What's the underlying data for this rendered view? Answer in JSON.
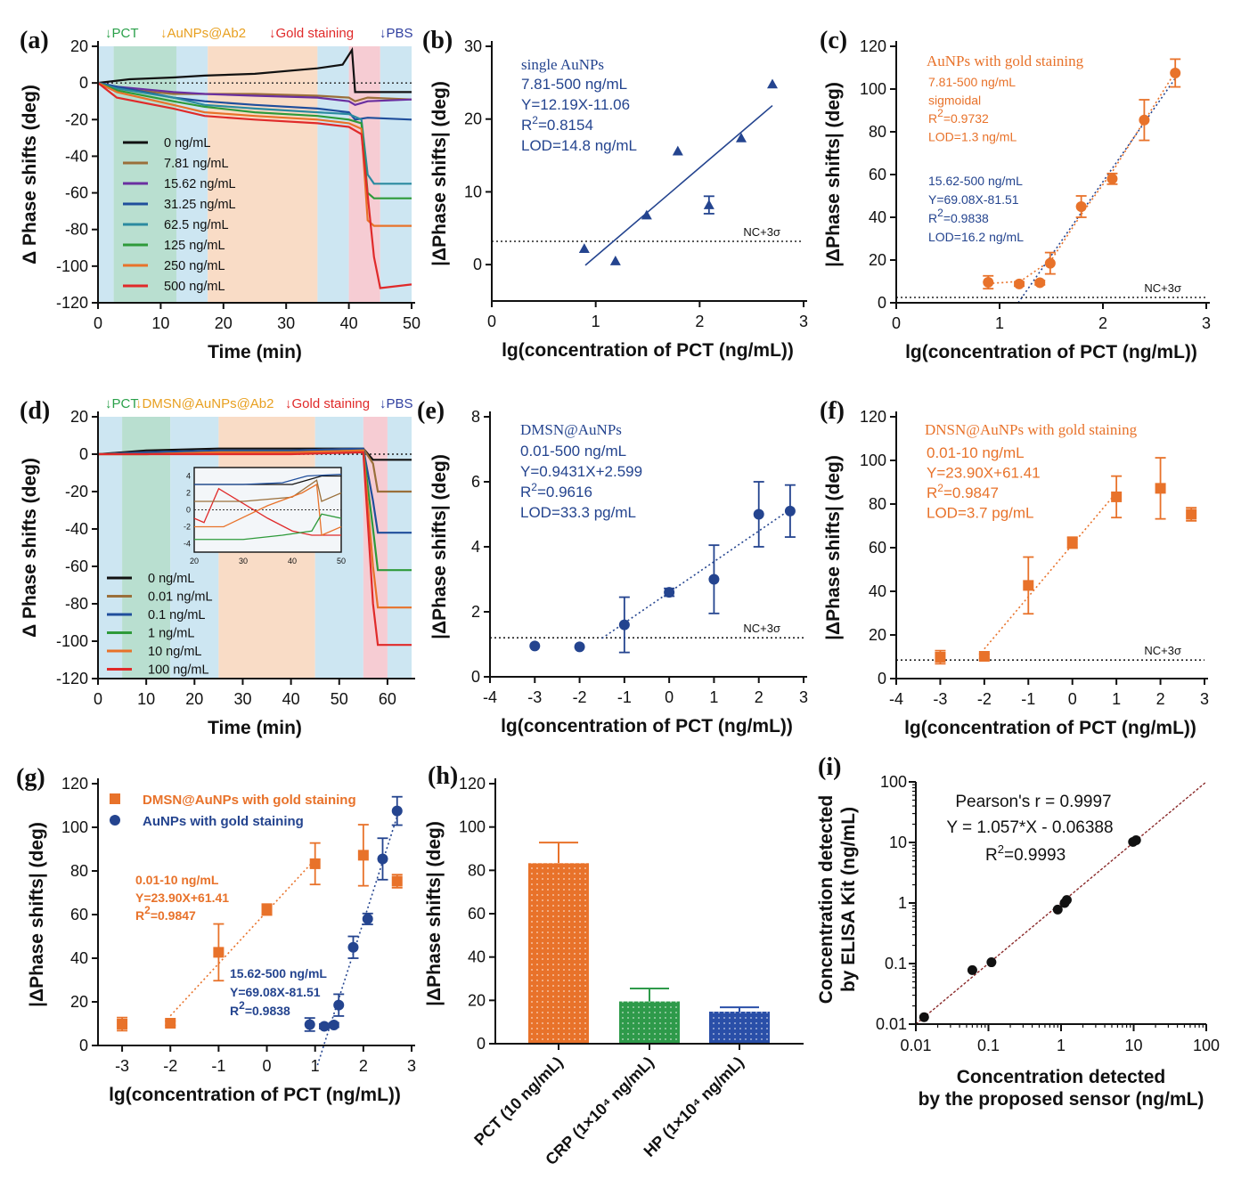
{
  "colors": {
    "blue": "#24448f",
    "orange": "#e8722a",
    "green": "#2e8b3f",
    "black": "#111111",
    "brown": "#9a6f3a",
    "purple": "#6a2fa0",
    "blue2": "#1f4e9c",
    "teal": "#2b8aa0",
    "red": "#e02a2a",
    "pct": "#2aa04a",
    "gold": "#e8a020",
    "pbs": "#3040a0"
  },
  "chart_data": [
    {
      "panel": "(a)",
      "type": "line",
      "xlabel": "Time (min)",
      "ylabel": "Δ Phase shifts (deg)",
      "xlim": [
        0,
        50
      ],
      "ylim": [
        -120,
        20
      ],
      "xticks": [
        "0",
        "10",
        "20",
        "30",
        "40",
        "50"
      ],
      "yticks": [
        "20",
        "0",
        "-20",
        "-40",
        "-60",
        "-80",
        "-100",
        "-120"
      ],
      "stage_labels": [
        "↓PCT",
        "↓AuNPs@Ab2",
        "↓Gold staining",
        "↓PBS"
      ],
      "stages": [
        {
          "from": 0,
          "to": 2.5,
          "color": "#cde6f2"
        },
        {
          "from": 2.5,
          "to": 12.5,
          "color": "#b9dfd0"
        },
        {
          "from": 12.5,
          "to": 17.5,
          "color": "#cde6f2"
        },
        {
          "from": 17.5,
          "to": 35,
          "color": "#f9dcc6"
        },
        {
          "from": 35,
          "to": 40,
          "color": "#cde6f2"
        },
        {
          "from": 40,
          "to": 45,
          "color": "#f6ccd3"
        },
        {
          "from": 45,
          "to": 50,
          "color": "#cde6f2"
        }
      ],
      "series": [
        {
          "name": "0 ng/mL",
          "color": "#111111",
          "x": [
            0,
            5,
            12,
            17,
            25,
            35,
            39,
            40.5,
            41,
            43,
            50
          ],
          "y": [
            0,
            2,
            3,
            4,
            5,
            8,
            10,
            18,
            -5,
            -5,
            -5
          ]
        },
        {
          "name": "7.81 ng/mL",
          "color": "#9a6f3a",
          "x": [
            0,
            3,
            12,
            17,
            25,
            35,
            40,
            41,
            43,
            50
          ],
          "y": [
            0,
            -3,
            -6,
            -6,
            -6,
            -7,
            -8,
            -10,
            -8,
            -9
          ]
        },
        {
          "name": "15.62 ng/mL",
          "color": "#6a2fa0",
          "x": [
            0,
            3,
            12,
            17,
            25,
            35,
            40,
            41,
            43,
            50
          ],
          "y": [
            0,
            -2,
            -5,
            -6,
            -7,
            -8,
            -10,
            -12,
            -10,
            -9
          ]
        },
        {
          "name": "31.25 ng/mL",
          "color": "#1f4e9c",
          "x": [
            0,
            3,
            12,
            17,
            25,
            35,
            40,
            41,
            43,
            50
          ],
          "y": [
            0,
            -2,
            -8,
            -10,
            -12,
            -14,
            -16,
            -20,
            -19,
            -20
          ]
        },
        {
          "name": "62.5 ng/mL",
          "color": "#2b8aa0",
          "x": [
            0,
            3,
            12,
            17,
            25,
            35,
            40,
            42,
            43,
            44,
            50
          ],
          "y": [
            0,
            -3,
            -8,
            -12,
            -14,
            -16,
            -17,
            -20,
            -50,
            -55,
            -55
          ]
        },
        {
          "name": "125 ng/mL",
          "color": "#2e9a3a",
          "x": [
            0,
            3,
            12,
            17,
            25,
            35,
            40,
            42,
            43,
            44,
            50
          ],
          "y": [
            0,
            -4,
            -10,
            -13,
            -16,
            -18,
            -20,
            -22,
            -60,
            -63,
            -63
          ]
        },
        {
          "name": "250 ng/mL",
          "color": "#e8722a",
          "x": [
            0,
            3,
            12,
            17,
            25,
            35,
            40,
            42,
            43,
            44,
            50
          ],
          "y": [
            0,
            -5,
            -12,
            -16,
            -18,
            -20,
            -22,
            -25,
            -75,
            -78,
            -78
          ]
        },
        {
          "name": "500 ng/mL",
          "color": "#e02a2a",
          "x": [
            0,
            3,
            12,
            17,
            25,
            35,
            40,
            42,
            44,
            45,
            50
          ],
          "y": [
            0,
            -8,
            -14,
            -18,
            -20,
            -22,
            -24,
            -28,
            -95,
            -112,
            -110
          ]
        }
      ]
    },
    {
      "panel": "(b)",
      "type": "scatter",
      "xlabel": "lg(concentration of PCT (ng/mL))",
      "ylabel": "|ΔPhase shifts| (deg)",
      "xlim": [
        0,
        3
      ],
      "ylim": [
        -5,
        30
      ],
      "xticks": [
        "0",
        "1",
        "2",
        "3"
      ],
      "yticks": [
        "0",
        "10",
        "20",
        "30"
      ],
      "title": "single AuNPs",
      "annotations": [
        "7.81-500 ng/mL",
        "Y=12.19X-11.06",
        "R2=0.8154",
        "LOD=14.8 ng/mL"
      ],
      "nc_label": "NC+3σ",
      "nc_value": 3.2,
      "x": [
        0.89,
        1.19,
        1.49,
        1.79,
        2.09,
        2.4,
        2.7
      ],
      "y": [
        2.2,
        0.5,
        6.8,
        15.6,
        8.2,
        17.4,
        24.8
      ],
      "err": [
        0,
        0,
        0,
        0,
        1.2,
        0,
        0
      ],
      "fit": {
        "slope": 12.19,
        "intercept": -11.06,
        "x": [
          0.9,
          2.7
        ]
      }
    },
    {
      "panel": "(c)",
      "type": "scatter",
      "xlabel": "lg(concentration of PCT (ng/mL))",
      "ylabel": "|ΔPhase shifts| (deg)",
      "xlim": [
        0,
        3
      ],
      "ylim": [
        0,
        120
      ],
      "xticks": [
        "0",
        "1",
        "2",
        "3"
      ],
      "yticks": [
        "0",
        "20",
        "40",
        "60",
        "80",
        "100",
        "120"
      ],
      "title": "AuNPs with gold staining",
      "annotations_orange": [
        "7.81-500 ng/mL",
        "sigmoidal",
        "R2=0.9732",
        "LOD=1.3 ng/mL"
      ],
      "annotations_blue": [
        "15.62-500 ng/mL",
        "Y=69.08X-81.51",
        "R2=0.9838",
        "LOD=16.2 ng/mL"
      ],
      "nc_label": "NC+3σ",
      "nc_value": 2.5,
      "x": [
        0.89,
        1.19,
        1.39,
        1.49,
        1.79,
        2.09,
        2.4,
        2.7
      ],
      "y": [
        9.6,
        8.8,
        9.4,
        18.5,
        45,
        58,
        85.5,
        107.5
      ],
      "err": [
        3,
        1,
        1,
        5,
        5,
        2.5,
        9.5,
        6.5
      ],
      "sigmoid": {
        "x": [
          0.89,
          1.2,
          1.5,
          1.8,
          2.1,
          2.4,
          2.7
        ],
        "y": [
          9,
          10,
          20,
          42,
          62,
          85,
          108
        ]
      },
      "fit": {
        "slope": 69.08,
        "intercept": -81.51,
        "x": [
          1.18,
          2.7
        ]
      }
    },
    {
      "panel": "(d)",
      "type": "line",
      "xlabel": "Time (min)",
      "ylabel": "Δ Phase shifts (deg)",
      "xlim": [
        0,
        65
      ],
      "ylim": [
        -120,
        20
      ],
      "xticks": [
        "0",
        "10",
        "20",
        "30",
        "40",
        "50",
        "60"
      ],
      "yticks": [
        "20",
        "0",
        "-20",
        "-40",
        "-60",
        "-80",
        "-100",
        "-120"
      ],
      "stage_labels": [
        "↓PCT",
        "↓DMSN@AuNPs@Ab2",
        "↓Gold staining",
        "↓PBS"
      ],
      "stages": [
        {
          "from": 0,
          "to": 5,
          "color": "#cde6f2"
        },
        {
          "from": 5,
          "to": 15,
          "color": "#b9dfd0"
        },
        {
          "from": 15,
          "to": 25,
          "color": "#cde6f2"
        },
        {
          "from": 25,
          "to": 45,
          "color": "#f9dcc6"
        },
        {
          "from": 45,
          "to": 55,
          "color": "#cde6f2"
        },
        {
          "from": 55,
          "to": 60,
          "color": "#f6ccd3"
        },
        {
          "from": 60,
          "to": 65,
          "color": "#cde6f2"
        }
      ],
      "series": [
        {
          "name": "0 ng/mL",
          "color": "#111111",
          "x": [
            0,
            10,
            25,
            40,
            55,
            57,
            60,
            65
          ],
          "y": [
            0,
            2,
            3,
            3,
            3,
            -3,
            -3,
            -3
          ]
        },
        {
          "name": "0.01 ng/mL",
          "color": "#9a6f3a",
          "x": [
            0,
            10,
            25,
            40,
            55,
            57,
            58,
            65
          ],
          "y": [
            0,
            1,
            2,
            2,
            3,
            -5,
            -20,
            -20
          ]
        },
        {
          "name": "0.1 ng/mL",
          "color": "#1f4e9c",
          "x": [
            0,
            10,
            25,
            40,
            55,
            57,
            58,
            65
          ],
          "y": [
            0,
            1,
            2,
            2,
            3,
            -25,
            -42,
            -42
          ]
        },
        {
          "name": "1 ng/mL",
          "color": "#2e9a3a",
          "x": [
            0,
            10,
            25,
            40,
            55,
            57,
            58,
            65
          ],
          "y": [
            0,
            0,
            1,
            1,
            2,
            -40,
            -62,
            -62
          ]
        },
        {
          "name": "10 ng/mL",
          "color": "#e8722a",
          "x": [
            0,
            10,
            25,
            40,
            55,
            57,
            58,
            65
          ],
          "y": [
            0,
            0,
            1,
            1,
            2,
            -60,
            -82,
            -82
          ]
        },
        {
          "name": "100 ng/mL",
          "color": "#e02a2a",
          "x": [
            0,
            10,
            25,
            40,
            55,
            57,
            58,
            65
          ],
          "y": [
            0,
            0,
            0,
            0,
            1,
            -80,
            -102,
            -102
          ]
        }
      ],
      "inset": {
        "xticks": [
          "20",
          "30",
          "40",
          "50"
        ],
        "yticks": [
          "4",
          "2",
          "0",
          "-2",
          "-4"
        ],
        "xlim": [
          20,
          50
        ],
        "ylim": [
          -5,
          5
        ]
      }
    },
    {
      "panel": "(e)",
      "type": "scatter",
      "xlabel": "lg(concentration of PCT (ng/mL))",
      "ylabel": "|ΔPhase shifts| (deg)",
      "xlim": [
        -4,
        3
      ],
      "ylim": [
        0,
        8
      ],
      "xticks": [
        "-4",
        "-3",
        "-2",
        "-1",
        "0",
        "1",
        "2",
        "3"
      ],
      "yticks": [
        "0",
        "2",
        "4",
        "6",
        "8"
      ],
      "title": "DMSN@AuNPs",
      "annotations": [
        "0.01-500 ng/mL",
        "Y=0.9431X+2.599",
        "R2=0.9616",
        "LOD=33.3 pg/mL"
      ],
      "nc_label": "NC+3σ",
      "nc_value": 1.2,
      "x": [
        -3,
        -2,
        -1,
        0,
        1,
        2,
        2.7
      ],
      "y": [
        0.95,
        0.92,
        1.6,
        2.6,
        3.0,
        5.0,
        5.1
      ],
      "err": [
        0,
        0,
        0.85,
        0.12,
        1.05,
        1.0,
        0.8
      ],
      "fit": {
        "slope": 0.9431,
        "intercept": 2.599,
        "x": [
          -1.5,
          2.7
        ]
      }
    },
    {
      "panel": "(f)",
      "type": "scatter",
      "xlabel": "lg(concentration of PCT (ng/mL))",
      "ylabel": "|ΔPhase shifts| (deg)",
      "xlim": [
        -4,
        3
      ],
      "ylim": [
        0,
        120
      ],
      "xticks": [
        "-4",
        "-3",
        "-2",
        "-1",
        "0",
        "1",
        "2",
        "3"
      ],
      "yticks": [
        "0",
        "20",
        "40",
        "60",
        "80",
        "100",
        "120"
      ],
      "title": "DNSN@AuNPs with gold staining",
      "annotations": [
        "0.01-10 ng/mL",
        "Y=23.90X+61.41",
        "R2=0.9847",
        "LOD=3.7 pg/mL"
      ],
      "nc_label": "NC+3σ",
      "nc_value": 8.5,
      "x": [
        -3,
        -2,
        -1,
        0,
        1,
        2,
        2.7
      ],
      "y": [
        9.8,
        10.2,
        42.7,
        62.3,
        83.3,
        87.2,
        75.3
      ],
      "err": [
        3,
        1,
        13,
        2.5,
        9.5,
        14,
        3
      ],
      "fit": {
        "slope": 23.9,
        "intercept": 61.41,
        "x": [
          -2,
          1
        ]
      }
    },
    {
      "panel": "(g)",
      "type": "scatter",
      "xlabel": "lg(concentration of PCT (ng/mL))",
      "ylabel": "|ΔPhase shifts| (deg)",
      "xlim": [
        -3.5,
        3
      ],
      "ylim": [
        0,
        120
      ],
      "xticks": [
        "-3",
        "-2",
        "-1",
        "0",
        "1",
        "2",
        "3"
      ],
      "yticks": [
        "0",
        "20",
        "40",
        "60",
        "80",
        "100",
        "120"
      ],
      "legend": [
        "DMSN@AuNPs with gold staining",
        "AuNPs with gold staining"
      ],
      "annotations_orange": [
        "0.01-10 ng/mL",
        "Y=23.90X+61.41",
        "R2=0.9847"
      ],
      "annotations_blue": [
        "15.62-500 ng/mL",
        "Y=69.08X-81.51",
        "R2=0.9838"
      ],
      "series": [
        {
          "name": "DMSN@AuNPs with gold staining",
          "marker": "square",
          "x": [
            -3,
            -2,
            -1,
            0,
            1,
            2,
            2.7
          ],
          "y": [
            9.8,
            10.2,
            42.7,
            62.3,
            83.3,
            87.2,
            75.3
          ],
          "err": [
            3,
            1,
            13,
            2.5,
            9.5,
            14,
            3
          ],
          "fit": {
            "slope": 23.9,
            "intercept": 61.41,
            "x": [
              -2,
              1
            ]
          }
        },
        {
          "name": "AuNPs with gold staining",
          "marker": "circle",
          "x": [
            0.89,
            1.19,
            1.39,
            1.49,
            1.79,
            2.09,
            2.4,
            2.7
          ],
          "y": [
            9.6,
            8.8,
            9.4,
            18.5,
            45,
            58,
            85.5,
            107.5
          ],
          "err": [
            3,
            1,
            1,
            5,
            5,
            2.5,
            9.5,
            6.5
          ],
          "fit": {
            "slope": 69.08,
            "intercept": -81.51,
            "x": [
              1.05,
              2.7
            ]
          }
        }
      ]
    },
    {
      "panel": "(h)",
      "type": "bar",
      "ylabel": "|ΔPhase shifts| (deg)",
      "ylim": [
        0,
        120
      ],
      "yticks": [
        "0",
        "20",
        "40",
        "60",
        "80",
        "100",
        "120"
      ],
      "categories": [
        "PCT (10 ng/mL)",
        "CRP (1×10⁴ ng/mL)",
        "HP (1×10⁴ ng/mL)"
      ],
      "values": [
        83.3,
        19.5,
        14.8
      ],
      "err": [
        9.5,
        6,
        2
      ],
      "bar_colors": [
        "#e8722a",
        "#2e9a4a",
        "#2a4fa8"
      ]
    },
    {
      "panel": "(i)",
      "type": "scatter",
      "xlabel": [
        "Concentration detected",
        "by the proposed sensor (ng/mL)"
      ],
      "ylabel": [
        "Concentration detected",
        "by ELISA Kit (ng/mL)"
      ],
      "xscale": "log",
      "yscale": "log",
      "xlim": [
        0.01,
        100
      ],
      "ylim": [
        0.01,
        100
      ],
      "xticks": [
        "0.01",
        "0.1",
        "1",
        "10",
        "100"
      ],
      "yticks": [
        "0.01",
        "0.1",
        "1",
        "10",
        "100"
      ],
      "annotations": [
        "Pearson's r = 0.9997",
        "Y = 1.057*X - 0.06388",
        "R2=0.9993"
      ],
      "x": [
        0.013,
        0.06,
        0.11,
        0.9,
        1.12,
        1.2,
        9.8,
        10.8
      ],
      "y": [
        0.013,
        0.078,
        0.105,
        0.78,
        1.0,
        1.12,
        10.2,
        10.9
      ]
    }
  ]
}
